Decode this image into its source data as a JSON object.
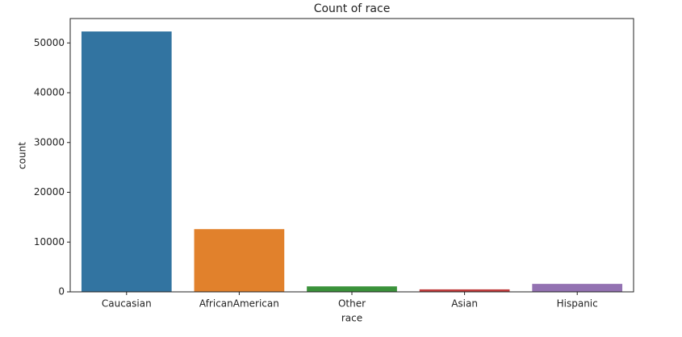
{
  "chart_data": {
    "type": "bar",
    "title": "Count of race",
    "x_label": "race",
    "y_label": "count",
    "categories": [
      "Caucasian",
      "AfricanAmerican",
      "Other",
      "Asian",
      "Hispanic"
    ],
    "values": [
      52300,
      12600,
      1100,
      500,
      1600
    ],
    "colors": [
      "#3274a1",
      "#e1812c",
      "#3a923a",
      "#c03d3e",
      "#9372b2"
    ],
    "ylim": [
      0,
      54900
    ],
    "yticks": [
      0,
      10000,
      20000,
      30000,
      40000,
      50000
    ],
    "grid": false
  }
}
